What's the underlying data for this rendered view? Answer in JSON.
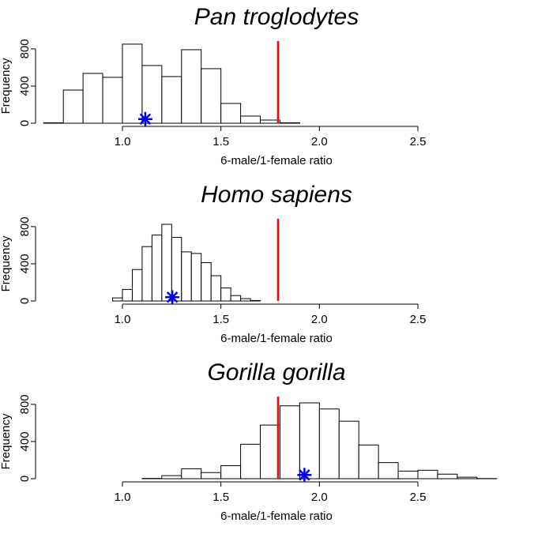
{
  "chart_data": [
    {
      "type": "histogram",
      "title": "Pan troglodytes",
      "x_label": "6-male/1-female ratio",
      "y_label": "Frequency",
      "bins": [
        0.6,
        0.7,
        0.8,
        0.9,
        1.0,
        1.1,
        1.2,
        1.3,
        1.4,
        1.5,
        1.6,
        1.7,
        1.8,
        1.9
      ],
      "values": [
        5,
        357,
        536,
        494,
        851,
        621,
        502,
        791,
        587,
        213,
        77,
        34,
        5
      ],
      "xlim": [
        0.6,
        2.9
      ],
      "xticks": [
        {
          "value": 1,
          "label": "1.0"
        },
        {
          "value": 1.5,
          "label": "1.5"
        },
        {
          "value": 2,
          "label": "2.0"
        },
        {
          "value": 2.5,
          "label": "2.5"
        }
      ],
      "ylim": [
        0,
        850
      ],
      "yticks": [
        0,
        400,
        800
      ],
      "reference_line": {
        "x": 1.79,
        "color": "#ff0000"
      },
      "observed": {
        "x": 1.116,
        "y": 45,
        "color": "#0000ee"
      }
    },
    {
      "type": "histogram",
      "title": "Homo sapiens",
      "x_label": "6-male/1-female ratio",
      "y_label": "Frequency",
      "bins": [
        0.95,
        1.0,
        1.05,
        1.1,
        1.15,
        1.2,
        1.25,
        1.3,
        1.35,
        1.4,
        1.45,
        1.5,
        1.55,
        1.6,
        1.65,
        1.7
      ],
      "values": [
        33,
        124,
        338,
        585,
        709,
        825,
        684,
        528,
        511,
        412,
        272,
        140,
        58,
        25,
        5
      ],
      "xlim": [
        0.6,
        2.9
      ],
      "xticks": [
        {
          "value": 1,
          "label": "1.0"
        },
        {
          "value": 1.5,
          "label": "1.5"
        },
        {
          "value": 2,
          "label": "2.0"
        },
        {
          "value": 2.5,
          "label": "2.5"
        }
      ],
      "ylim": [
        0,
        850
      ],
      "yticks": [
        0,
        400,
        800
      ],
      "reference_line": {
        "x": 1.79,
        "color": "#ff0000"
      },
      "observed": {
        "x": 1.253,
        "y": 40,
        "color": "#0000ee"
      }
    },
    {
      "type": "histogram",
      "title": "Gorilla gorilla",
      "x_label": "6-male/1-female ratio",
      "y_label": "Frequency",
      "bins": [
        1.1,
        1.2,
        1.3,
        1.4,
        1.5,
        1.6,
        1.7,
        1.8,
        1.9,
        2.0,
        2.1,
        2.2,
        2.3,
        2.4,
        2.5,
        2.6,
        2.7,
        2.8,
        2.9
      ],
      "values": [
        3,
        33,
        107,
        66,
        140,
        371,
        577,
        784,
        816,
        750,
        619,
        363,
        173,
        82,
        91,
        49,
        16,
        2
      ],
      "xlim": [
        0.6,
        2.9
      ],
      "xticks": [
        {
          "value": 1,
          "label": "1.0"
        },
        {
          "value": 1.5,
          "label": "1.5"
        },
        {
          "value": 2,
          "label": "2.0"
        },
        {
          "value": 2.5,
          "label": "2.5"
        }
      ],
      "ylim": [
        0,
        850
      ],
      "yticks": [
        0,
        400,
        800
      ],
      "reference_line": {
        "x": 1.79,
        "color": "#ff0000"
      },
      "observed": {
        "x": 1.924,
        "y": 40,
        "color": "#0000ee"
      }
    }
  ]
}
